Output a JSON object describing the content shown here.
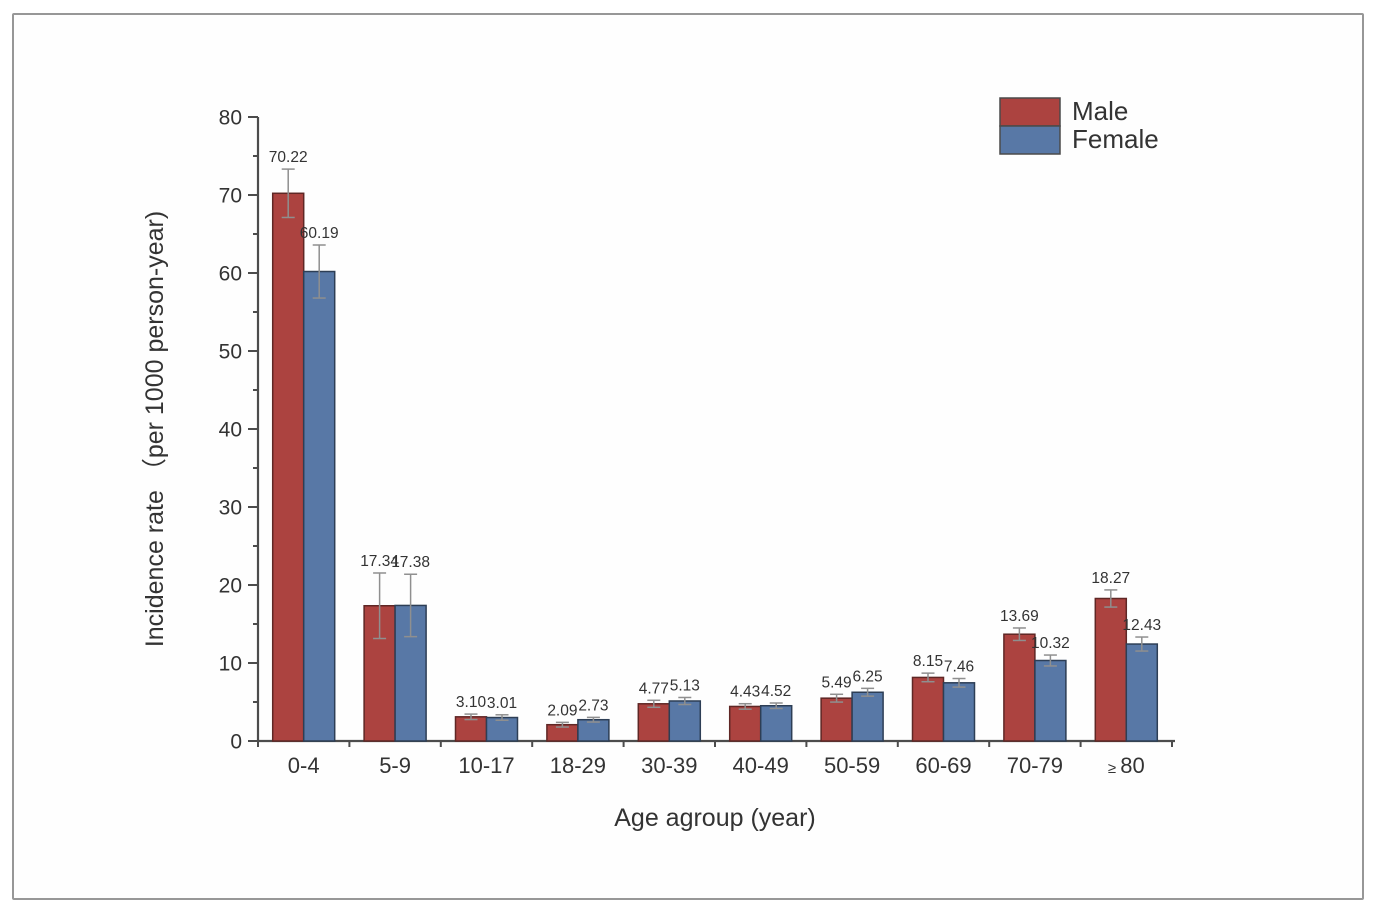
{
  "frame": {
    "border_color": "#979797",
    "background": "#fefefe"
  },
  "chart_data": {
    "type": "bar",
    "title": "",
    "xlabel": "Age agroup (year)",
    "ylabel": "Incidence rate （per 1000 person-year)",
    "categories": [
      "0-4",
      "5-9",
      "10-17",
      "18-29",
      "30-39",
      "40-49",
      "50-59",
      "60-69",
      "70-79",
      "≥ 80"
    ],
    "series": [
      {
        "name": "Male",
        "color": "#AC4340",
        "edge_color": "#5f2725",
        "values": [
          70.22,
          17.34,
          3.1,
          2.09,
          4.77,
          4.43,
          5.49,
          8.15,
          13.69,
          18.27
        ],
        "labels": [
          "70.22",
          "17.34",
          "3.10",
          "2.09",
          "4.77",
          "4.43",
          "5.49",
          "8.15",
          "13.69",
          "18.27"
        ],
        "errors": [
          3.1,
          4.2,
          0.35,
          0.3,
          0.45,
          0.35,
          0.5,
          0.55,
          0.8,
          1.1
        ]
      },
      {
        "name": "Female",
        "color": "#5878A6",
        "edge_color": "#2d3e55",
        "values": [
          60.19,
          17.38,
          3.01,
          2.73,
          5.13,
          4.52,
          6.25,
          7.46,
          10.32,
          12.43
        ],
        "labels": [
          "60.19",
          "17.38",
          "3.01",
          "2.73",
          "5.13",
          "4.52",
          "6.25",
          "7.46",
          "10.32",
          "12.43"
        ],
        "errors": [
          3.4,
          4.0,
          0.35,
          0.3,
          0.45,
          0.35,
          0.5,
          0.55,
          0.7,
          0.9
        ]
      }
    ],
    "ylim": [
      0,
      80
    ],
    "ytick_step": 10,
    "yminor_step": 5,
    "grid": false,
    "legend_position": "top-right",
    "axis_color": "#4c4c4c",
    "error_bar_color": "#8f8f8f",
    "value_label_color": "#3d3d3d",
    "tick_label_color": "#2f2f2f"
  }
}
